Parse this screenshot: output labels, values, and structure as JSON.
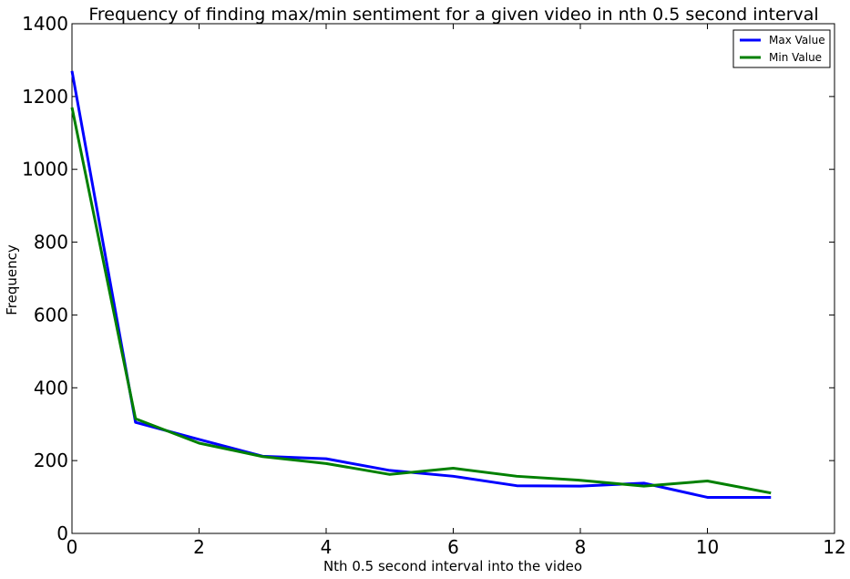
{
  "chart_data": {
    "type": "line",
    "title": "Frequency of finding max/min sentiment for a given video in nth 0.5 second interval",
    "xlabel": "Nth 0.5 second interval into the video",
    "ylabel": "Frequency",
    "xlim": [
      0,
      12
    ],
    "ylim": [
      0,
      1400
    ],
    "xticks": [
      0,
      2,
      4,
      6,
      8,
      10,
      12
    ],
    "yticks": [
      0,
      200,
      400,
      600,
      800,
      1000,
      1200,
      1400
    ],
    "grid": false,
    "legend_position": "top-right",
    "x": [
      0,
      1,
      2,
      3,
      4,
      5,
      6,
      7,
      8,
      9,
      10,
      11
    ],
    "series": [
      {
        "name": "Max Value",
        "color": "#0000ff",
        "values": [
          1270,
          305,
          258,
          212,
          205,
          173,
          157,
          131,
          130,
          138,
          99,
          99
        ]
      },
      {
        "name": "Min Value",
        "color": "#008000",
        "values": [
          1170,
          315,
          248,
          211,
          192,
          162,
          179,
          157,
          146,
          130,
          144,
          111
        ]
      }
    ]
  }
}
